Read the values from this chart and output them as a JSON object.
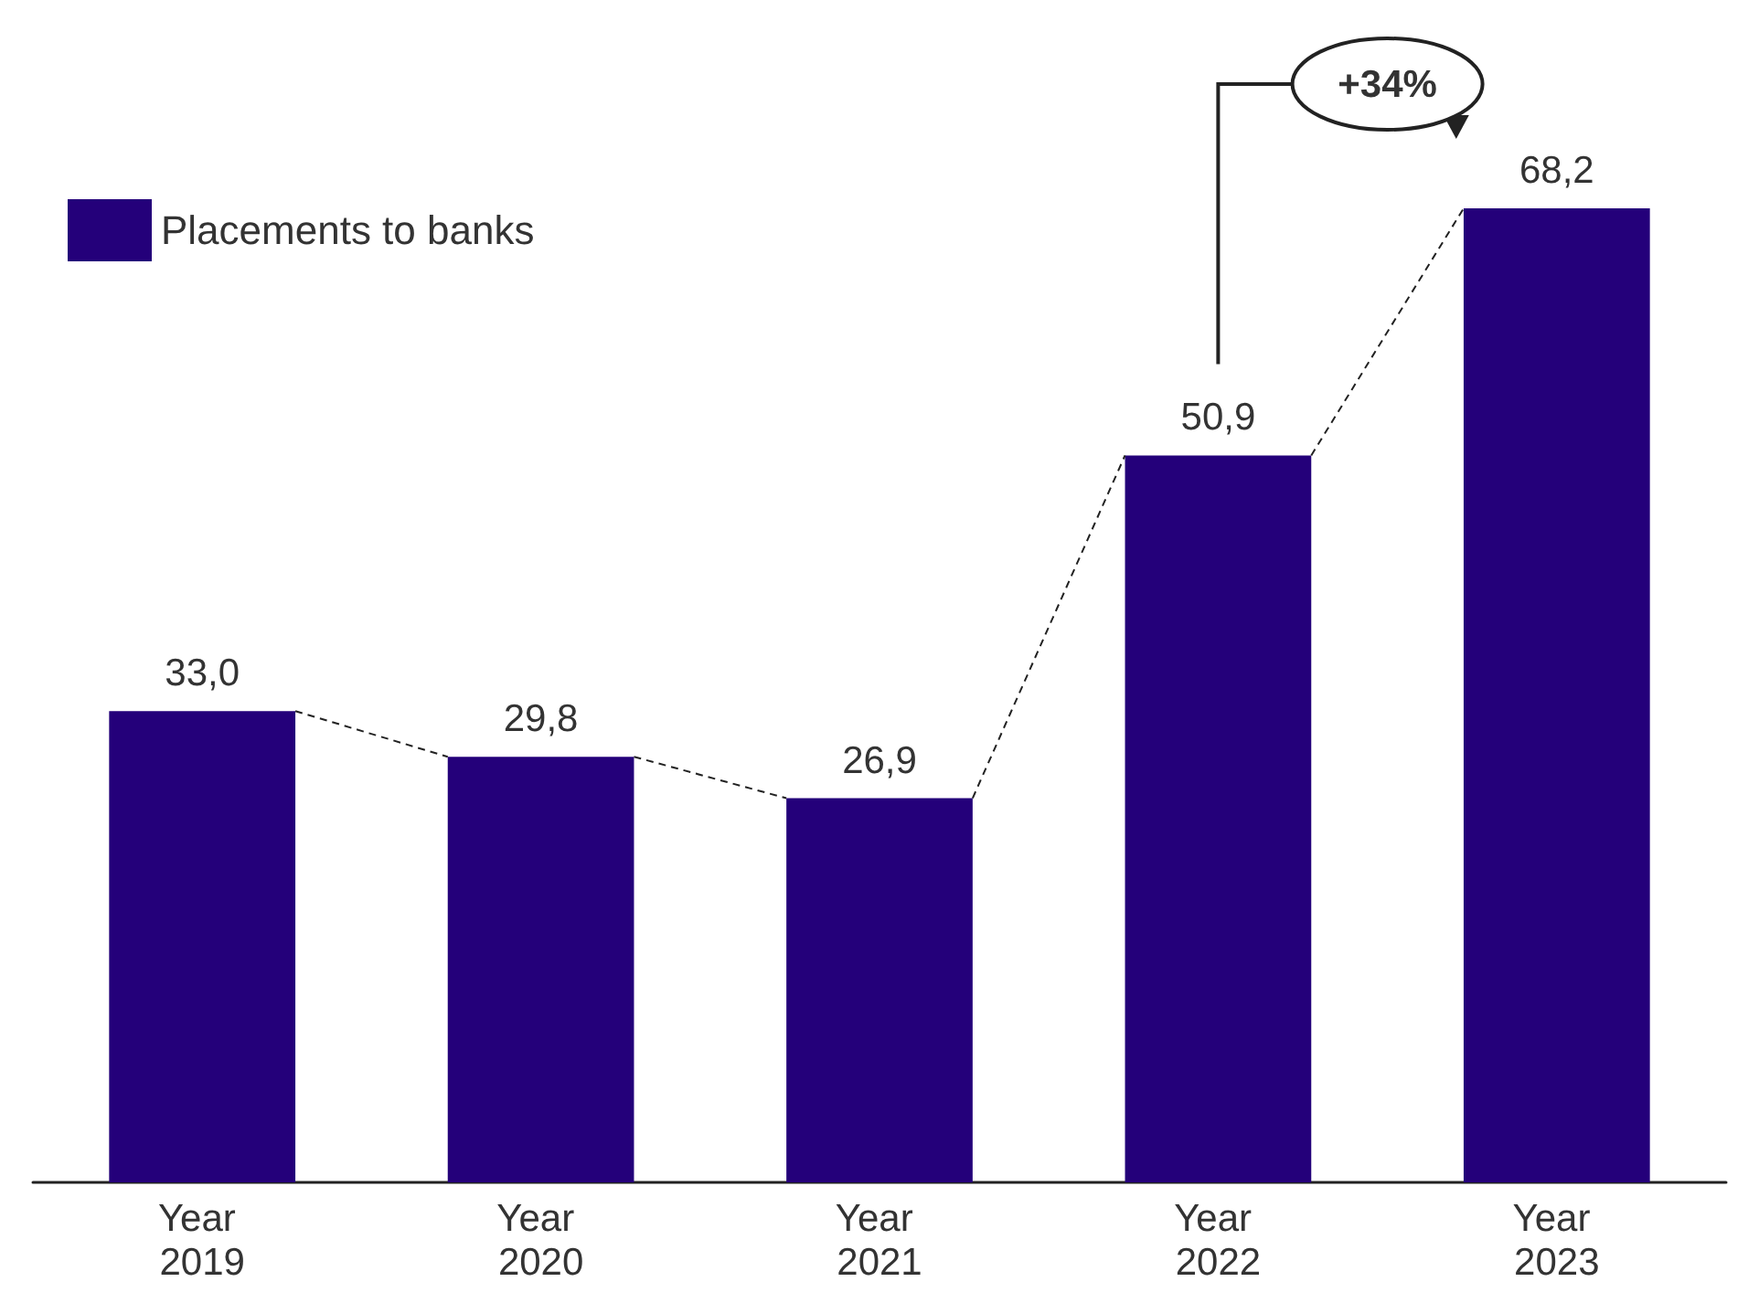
{
  "chart_data": {
    "type": "bar",
    "categories": [
      "Year 2019",
      "Year 2020",
      "Year 2021",
      "Year 2022",
      "Year 2023"
    ],
    "series": [
      {
        "name": "Placements to banks",
        "color": "#24007a",
        "values": [
          33.0,
          29.8,
          26.9,
          50.9,
          68.2
        ],
        "value_labels": [
          "33,0",
          "29,8",
          "26,9",
          "50,9",
          "68,2"
        ]
      }
    ],
    "annotations": [
      "+34%"
    ],
    "legend": "top left",
    "grid": false
  }
}
